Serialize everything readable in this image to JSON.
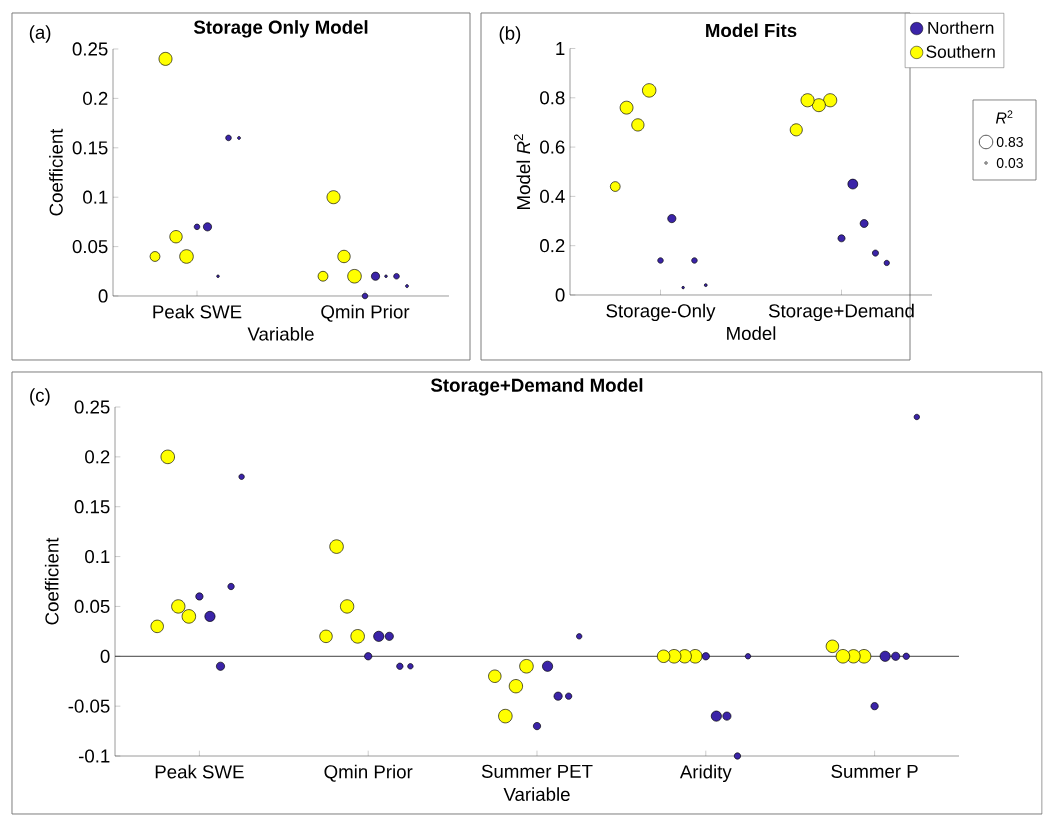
{
  "chart_data": [
    {
      "type": "bubble",
      "title": "Storage Only Model",
      "xlabel": "Variable",
      "ylabel": "Coefficient",
      "annotations": [
        "(a)"
      ],
      "marker": "circle",
      "categories": [
        "Peak SWE",
        "Qmin Prior"
      ],
      "ylim": [
        0,
        0.25
      ],
      "yticks": [
        0,
        0.05,
        0.1,
        0.15,
        0.2,
        0.25
      ],
      "series": [
        {
          "color": "#ffff00",
          "x": [
            "Peak SWE",
            "Peak SWE",
            "Peak SWE",
            "Peak SWE",
            "Qmin Prior",
            "Qmin Prior",
            "Qmin Prior",
            "Qmin Prior"
          ],
          "values": [
            0.04,
            0.06,
            0.24,
            0.04,
            0.02,
            0.04,
            0.1,
            0.02
          ],
          "sizes": [
            1,
            0.83,
            0.92,
            0.53,
            1,
            0.83,
            0.92,
            0.53
          ]
        },
        {
          "color": "#3b24a8",
          "x": [
            "Peak SWE",
            "Peak SWE",
            "Peak SWE",
            "Peak SWE",
            "Peak SWE",
            "Qmin Prior",
            "Qmin Prior",
            "Qmin Prior",
            "Qmin Prior",
            "Qmin Prior"
          ],
          "values": [
            0.07,
            0.07,
            0.02,
            0.16,
            0.16,
            0,
            0.02,
            0.02,
            0.02,
            0.01
          ],
          "sizes": [
            0.17,
            0.37,
            0.04,
            0.17,
            0.05,
            0.17,
            0.37,
            0.04,
            0.17,
            0.05
          ]
        }
      ]
    },
    {
      "type": "bubble",
      "title": "Model Fits",
      "xlabel": "Model",
      "ylabel": "Model *R*$^{2}$",
      "annotations": [
        "(b)"
      ],
      "marker": "circle",
      "legend": "right",
      "legend_title": "*R*$^{2}$",
      "size_legend": [
        0.83,
        0.03
      ],
      "categories": [
        "Storage-Only",
        "Storage+Demand"
      ],
      "ylim": [
        0,
        1
      ],
      "yticks": [
        0,
        0.2,
        0.4,
        0.6,
        0.8,
        1
      ],
      "series": [
        {
          "name": "Southern",
          "color": "#ffff00",
          "x": [
            "Storage-Only",
            "Storage-Only",
            "Storage-Only",
            "Storage-Only",
            "Storage+Demand",
            "Storage+Demand",
            "Storage+Demand",
            "Storage+Demand"
          ],
          "values": [
            0.83,
            0.69,
            0.76,
            0.44,
            0.79,
            0.77,
            0.79,
            0.67
          ],
          "sizes": [
            0.83,
            0.69,
            0.76,
            0.44,
            0.79,
            0.77,
            0.79,
            0.67
          ]
        },
        {
          "name": "Northern",
          "color": "#3b24a8",
          "x": [
            "Storage-Only",
            "Storage-Only",
            "Storage-Only",
            "Storage-Only",
            "Storage-Only",
            "Storage+Demand",
            "Storage+Demand",
            "Storage+Demand",
            "Storage+Demand",
            "Storage+Demand"
          ],
          "values": [
            0.14,
            0.31,
            0.03,
            0.14,
            0.04,
            0.23,
            0.45,
            0.29,
            0.17,
            0.13
          ],
          "sizes": [
            0.14,
            0.31,
            0.03,
            0.14,
            0.04,
            0.23,
            0.45,
            0.29,
            0.17,
            0.13
          ]
        }
      ]
    },
    {
      "type": "bubble",
      "title": "Storage+Demand Model",
      "xlabel": "Variable",
      "ylabel": "Coefficient",
      "annotations": [
        "(c)"
      ],
      "marker": "circle",
      "categories": [
        "Peak SWE",
        "Qmin Prior",
        "Summer PET",
        "Aridity",
        "Summer P"
      ],
      "ylim": [
        -0.1,
        0.25
      ],
      "yticks": [
        -0.1,
        -0.05,
        0,
        0.05,
        0.1,
        0.15,
        0.2,
        0.25
      ],
      "ref_lines": [
        {
          "axis": "y",
          "value": 0
        }
      ],
      "series": [
        {
          "color": "#ffff00",
          "x": [
            "Peak SWE",
            "Peak SWE",
            "Peak SWE",
            "Peak SWE",
            "Qmin Prior",
            "Qmin Prior",
            "Qmin Prior",
            "Qmin Prior",
            "Summer PET",
            "Summer PET",
            "Summer PET",
            "Summer PET",
            "Aridity",
            "Aridity",
            "Aridity",
            "Aridity",
            "Summer P",
            "Summer P",
            "Summer P",
            "Summer P"
          ],
          "values": [
            0.04,
            0.05,
            0.2,
            0.03,
            0.02,
            0.05,
            0.11,
            0.02,
            -0.01,
            -0.03,
            -0.06,
            -0.02,
            0,
            0,
            0,
            0,
            0,
            0,
            0,
            0.01
          ],
          "sizes": [
            1,
            0.97,
            1,
            0.85,
            1,
            0.97,
            1,
            0.85,
            1,
            0.97,
            1,
            0.85,
            1,
            0.97,
            1,
            0.85,
            1,
            0.97,
            1,
            0.85
          ]
        },
        {
          "color": "#3b24a8",
          "x": [
            "Peak SWE",
            "Peak SWE",
            "Peak SWE",
            "Peak SWE",
            "Peak SWE",
            "Qmin Prior",
            "Qmin Prior",
            "Qmin Prior",
            "Qmin Prior",
            "Qmin Prior",
            "Summer PET",
            "Summer PET",
            "Summer PET",
            "Summer PET",
            "Summer PET",
            "Aridity",
            "Aridity",
            "Aridity",
            "Aridity",
            "Aridity",
            "Summer P",
            "Summer P",
            "Summer P",
            "Summer P",
            "Summer P"
          ],
          "values": [
            0.06,
            0.04,
            -0.01,
            0.07,
            0.18,
            0,
            0.02,
            0.02,
            -0.01,
            -0.01,
            -0.07,
            -0.01,
            -0.04,
            -0.04,
            0.02,
            0,
            -0.06,
            -0.06,
            -0.1,
            0,
            -0.05,
            0,
            0,
            0,
            0.24
          ],
          "sizes": [
            0.29,
            0.57,
            0.37,
            0.22,
            0.16,
            0.29,
            0.57,
            0.37,
            0.22,
            0.16,
            0.29,
            0.57,
            0.37,
            0.22,
            0.16,
            0.29,
            0.57,
            0.37,
            0.22,
            0.16,
            0.29,
            0.57,
            0.37,
            0.22,
            0.16
          ]
        }
      ]
    }
  ]
}
